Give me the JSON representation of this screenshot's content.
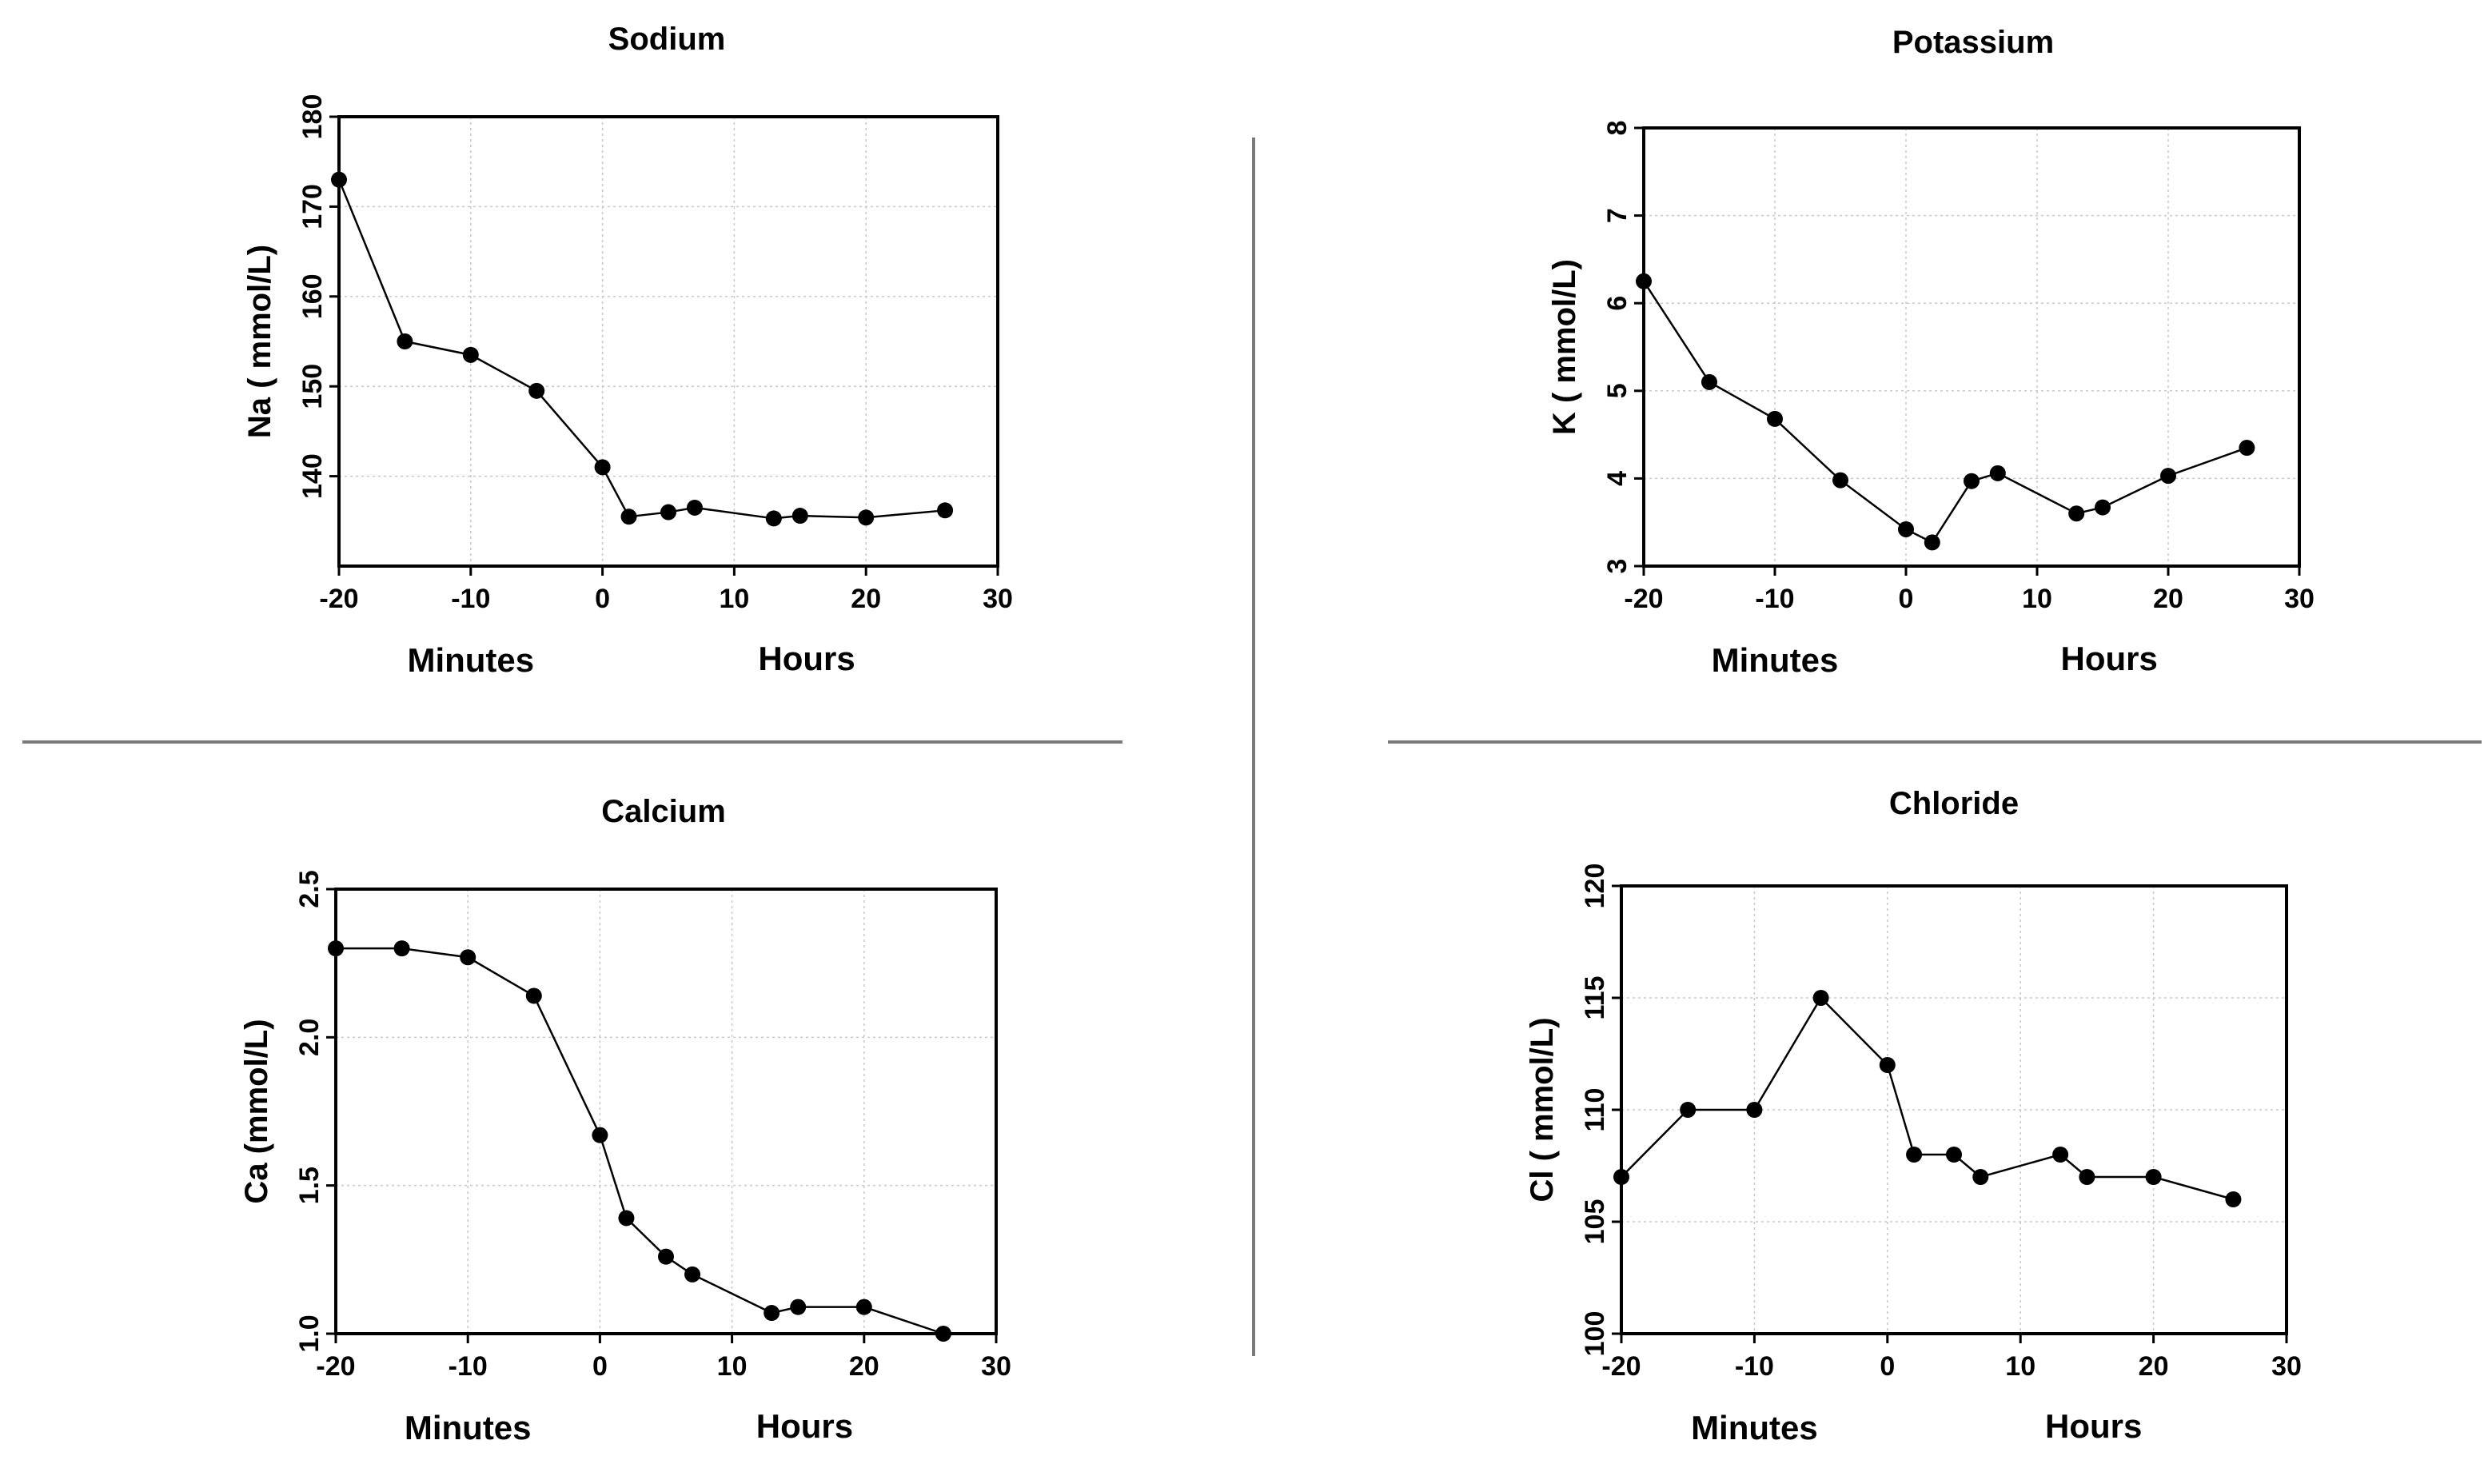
{
  "figure": {
    "sublabels": [
      "Minutes",
      "Hours"
    ]
  },
  "chart_data": [
    {
      "type": "line",
      "title": "Sodium",
      "xlabel": "",
      "ylabel": "Na ( mmol/L)",
      "xlim": [
        -20,
        30
      ],
      "ylim": [
        130,
        180
      ],
      "xticks": [
        -20,
        -10,
        0,
        10,
        20,
        30
      ],
      "yticks": [
        140,
        150,
        160,
        170,
        180
      ],
      "grid": true,
      "series": [
        {
          "name": "Na",
          "x": [
            -20,
            -15,
            -10,
            -5,
            0,
            2,
            5,
            7,
            13,
            15,
            20,
            26
          ],
          "y": [
            173,
            155,
            153.5,
            149.5,
            141,
            135.5,
            136,
            136.5,
            135.3,
            135.6,
            135.4,
            136.2
          ]
        }
      ]
    },
    {
      "type": "line",
      "title": "Potassium",
      "xlabel": "",
      "ylabel": "K ( mmol/L)",
      "xlim": [
        -20,
        30
      ],
      "ylim": [
        3,
        8
      ],
      "xticks": [
        -20,
        -10,
        0,
        10,
        20,
        30
      ],
      "yticks": [
        3,
        4,
        5,
        6,
        7,
        8
      ],
      "grid": true,
      "series": [
        {
          "name": "K",
          "x": [
            -20,
            -15,
            -10,
            -5,
            0,
            2,
            5,
            7,
            13,
            15,
            20,
            26
          ],
          "y": [
            6.25,
            5.1,
            4.68,
            3.98,
            3.42,
            3.27,
            3.97,
            4.06,
            3.6,
            3.67,
            4.03,
            4.35
          ]
        }
      ]
    },
    {
      "type": "line",
      "title": "Calcium",
      "xlabel": "",
      "ylabel": "Ca (mmol/L)",
      "xlim": [
        -20,
        30
      ],
      "ylim": [
        1.0,
        2.5
      ],
      "xticks": [
        -20,
        -10,
        0,
        10,
        20,
        30
      ],
      "yticks": [
        "1.0",
        "1.5",
        "2.0",
        "2.5"
      ],
      "grid": true,
      "series": [
        {
          "name": "Ca",
          "x": [
            -20,
            -15,
            -10,
            -5,
            0,
            2,
            5,
            7,
            13,
            15,
            20,
            26
          ],
          "y": [
            2.3,
            2.3,
            2.27,
            2.14,
            1.67,
            1.39,
            1.26,
            1.2,
            1.07,
            1.09,
            1.09,
            1.0
          ]
        }
      ]
    },
    {
      "type": "line",
      "title": "Chloride",
      "xlabel": "",
      "ylabel": "Cl ( mmol/L)",
      "xlim": [
        -20,
        30
      ],
      "ylim": [
        100,
        120
      ],
      "xticks": [
        -20,
        -10,
        0,
        10,
        20,
        30
      ],
      "yticks": [
        100,
        105,
        110,
        115,
        120
      ],
      "grid": true,
      "series": [
        {
          "name": "Cl",
          "x": [
            -20,
            -15,
            -10,
            -5,
            0,
            2,
            5,
            7,
            13,
            15,
            20,
            26
          ],
          "y": [
            107,
            110,
            110,
            115,
            112,
            108,
            108,
            107,
            108,
            107,
            107,
            106
          ]
        }
      ]
    }
  ]
}
